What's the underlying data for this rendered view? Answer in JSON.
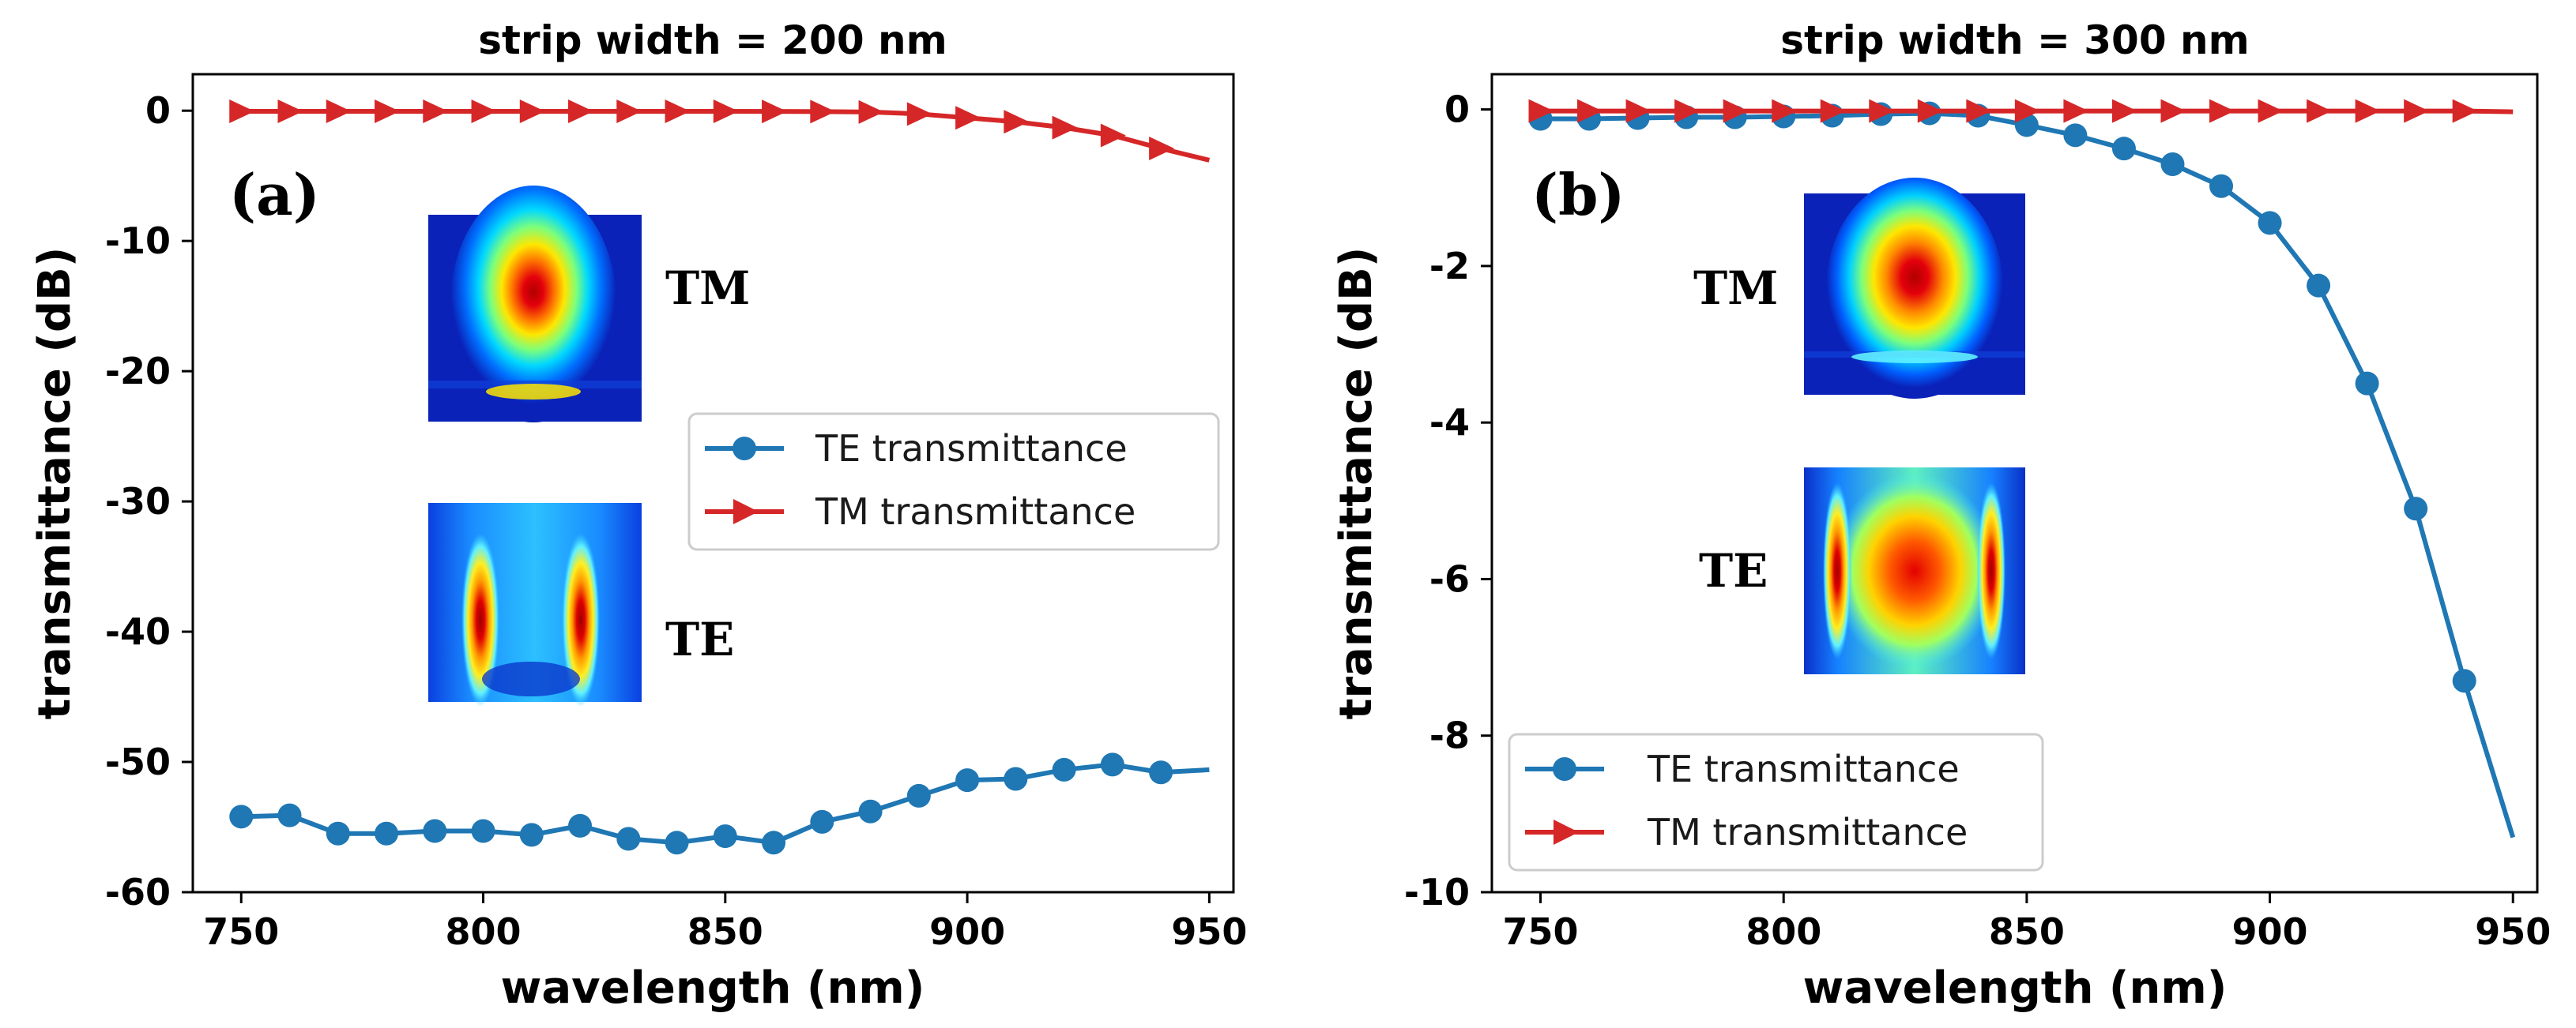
{
  "chart_data": [
    {
      "type": "line",
      "title": "strip width = 200 nm",
      "panel_label": "(a)",
      "xlabel": "wavelength (nm)",
      "ylabel": "transmittance (dB)",
      "xlim": [
        740,
        955
      ],
      "ylim": [
        -60,
        2.8
      ],
      "xticks": [
        750,
        800,
        850,
        900,
        950
      ],
      "yticks": [
        0,
        -10,
        -20,
        -30,
        -40,
        -50,
        -60
      ],
      "xtick_labels": [
        "750",
        "800",
        "850",
        "900",
        "950"
      ],
      "ytick_labels": [
        "0",
        "-10",
        "-20",
        "-30",
        "-40",
        "-50",
        "-60"
      ],
      "legend": [
        "TE transmittance",
        "TM transmittance"
      ],
      "insets": [
        "TM",
        "TE"
      ],
      "series": [
        {
          "name": "TE transmittance",
          "color": "#1f77b4",
          "marker": "circle",
          "x": [
            750,
            760,
            770,
            780,
            790,
            800,
            810,
            820,
            830,
            840,
            850,
            860,
            870,
            880,
            890,
            900,
            910,
            920,
            930,
            940,
            950
          ],
          "y": [
            -54.2,
            -54.1,
            -55.5,
            -55.5,
            -55.3,
            -55.3,
            -55.6,
            -54.9,
            -55.9,
            -56.2,
            -55.7,
            -56.2,
            -54.6,
            -53.8,
            -52.6,
            -51.4,
            -51.3,
            -50.6,
            -50.2,
            -50.8,
            -50.6
          ],
          "marker_x": [
            750,
            760,
            770,
            780,
            790,
            800,
            810,
            820,
            830,
            840,
            850,
            860,
            870,
            880,
            890,
            900,
            910,
            920,
            930,
            940
          ]
        },
        {
          "name": "TM transmittance",
          "color": "#d62728",
          "marker": "triangle-right",
          "x": [
            750,
            760,
            770,
            780,
            790,
            800,
            810,
            820,
            830,
            840,
            850,
            860,
            870,
            880,
            890,
            900,
            910,
            920,
            930,
            940,
            950
          ],
          "y": [
            -0.05,
            -0.05,
            -0.05,
            -0.05,
            -0.05,
            -0.05,
            -0.05,
            -0.05,
            -0.05,
            -0.05,
            -0.05,
            -0.06,
            -0.07,
            -0.1,
            -0.25,
            -0.55,
            -0.85,
            -1.3,
            -1.9,
            -2.9,
            -3.8
          ],
          "marker_x": [
            750,
            760,
            770,
            780,
            790,
            800,
            810,
            820,
            830,
            840,
            850,
            860,
            870,
            880,
            890,
            900,
            910,
            920,
            930,
            940
          ]
        }
      ]
    },
    {
      "type": "line",
      "title": "strip width = 300 nm",
      "panel_label": "(b)",
      "xlabel": "wavelength (nm)",
      "ylabel": "transmittance (dB)",
      "xlim": [
        740,
        955
      ],
      "ylim": [
        -10,
        0.45
      ],
      "xticks": [
        750,
        800,
        850,
        900,
        950
      ],
      "yticks": [
        0,
        -2,
        -4,
        -6,
        -8,
        -10
      ],
      "xtick_labels": [
        "750",
        "800",
        "850",
        "900",
        "950"
      ],
      "ytick_labels": [
        "0",
        "-2",
        "-4",
        "-6",
        "-8",
        "-10"
      ],
      "legend": [
        "TE transmittance",
        "TM transmittance"
      ],
      "insets": [
        "TM",
        "TE"
      ],
      "series": [
        {
          "name": "TE transmittance",
          "color": "#1f77b4",
          "marker": "circle",
          "x": [
            750,
            760,
            770,
            780,
            790,
            800,
            810,
            820,
            830,
            840,
            850,
            860,
            870,
            880,
            890,
            900,
            910,
            920,
            930,
            940,
            950
          ],
          "y": [
            -0.12,
            -0.12,
            -0.11,
            -0.1,
            -0.1,
            -0.09,
            -0.08,
            -0.06,
            -0.05,
            -0.08,
            -0.2,
            -0.33,
            -0.5,
            -0.7,
            -0.98,
            -1.45,
            -2.25,
            -3.5,
            -5.1,
            -7.3,
            -9.3
          ],
          "marker_x": [
            750,
            760,
            770,
            780,
            790,
            800,
            810,
            820,
            830,
            840,
            850,
            860,
            870,
            880,
            890,
            900,
            910,
            920,
            930,
            940
          ]
        },
        {
          "name": "TM transmittance",
          "color": "#d62728",
          "marker": "triangle-right",
          "x": [
            750,
            760,
            770,
            780,
            790,
            800,
            810,
            820,
            830,
            840,
            850,
            860,
            870,
            880,
            890,
            900,
            910,
            920,
            930,
            940,
            950
          ],
          "y": [
            -0.02,
            -0.02,
            -0.02,
            -0.02,
            -0.02,
            -0.02,
            -0.02,
            -0.02,
            -0.02,
            -0.02,
            -0.02,
            -0.02,
            -0.02,
            -0.02,
            -0.02,
            -0.02,
            -0.02,
            -0.02,
            -0.02,
            -0.02,
            -0.03
          ],
          "marker_x": [
            750,
            760,
            770,
            780,
            790,
            800,
            810,
            820,
            830,
            840,
            850,
            860,
            870,
            880,
            890,
            900,
            910,
            920,
            930,
            940
          ]
        }
      ]
    }
  ]
}
